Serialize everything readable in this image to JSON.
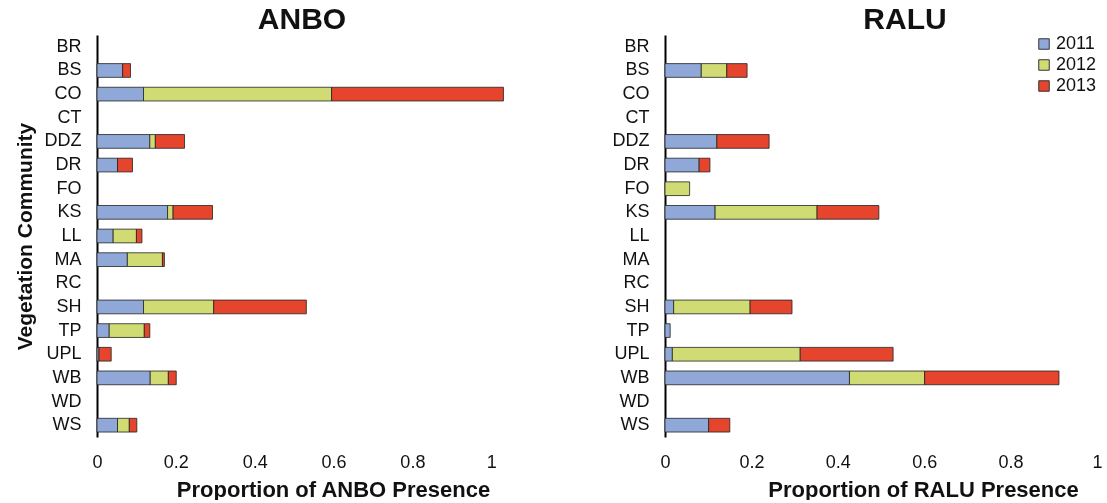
{
  "chart_data": [
    {
      "type": "bar",
      "orientation": "horizontal",
      "stacked": true,
      "title": "ANBO",
      "xlabel": "Proportion of ANBO Presence",
      "ylabel": "Vegetation Community",
      "categories": [
        "BR",
        "BS",
        "CO",
        "CT",
        "DDZ",
        "DR",
        "FO",
        "KS",
        "LL",
        "MA",
        "RC",
        "SH",
        "TP",
        "UPL",
        "WB",
        "WD",
        "WS"
      ],
      "series": [
        {
          "color": "#8fa8d8",
          "values": [
            null,
            0.065,
            0.118,
            null,
            0.134,
            0.052,
            null,
            0.179,
            0.041,
            0.077,
            null,
            0.118,
            0.031,
            0.005,
            0.135,
            null,
            0.052
          ]
        },
        {
          "color": "#d0dc73",
          "values": [
            null,
            null,
            0.477,
            null,
            0.014,
            null,
            null,
            0.014,
            0.059,
            0.089,
            null,
            0.178,
            0.089,
            null,
            0.046,
            null,
            0.03
          ]
        },
        {
          "color": "#e5452c",
          "values": [
            null,
            0.02,
            0.436,
            null,
            0.074,
            0.038,
            null,
            0.1,
            0.014,
            0.005,
            null,
            0.235,
            0.014,
            0.031,
            0.02,
            null,
            0.019
          ]
        }
      ],
      "xlim": [
        0,
        1.04
      ],
      "xticks": [
        0,
        0.2,
        0.4,
        0.6,
        0.8,
        1
      ]
    },
    {
      "type": "bar",
      "orientation": "horizontal",
      "stacked": true,
      "title": "RALU",
      "xlabel": "Proportion of RALU Presence",
      "categories": [
        "BR",
        "BS",
        "CO",
        "CT",
        "DDZ",
        "DR",
        "FO",
        "KS",
        "LL",
        "MA",
        "RC",
        "SH",
        "TP",
        "UPL",
        "WB",
        "WD",
        "WS"
      ],
      "series": [
        {
          "name": "2011",
          "color": "#8fa8d8",
          "values": [
            null,
            0.084,
            null,
            null,
            0.12,
            0.079,
            null,
            0.116,
            null,
            null,
            null,
            0.02,
            0.012,
            0.017,
            0.427,
            null,
            0.101
          ]
        },
        {
          "name": "2012",
          "color": "#d0dc73",
          "values": [
            null,
            0.059,
            null,
            null,
            null,
            null,
            0.057,
            0.236,
            null,
            null,
            null,
            0.177,
            null,
            0.296,
            0.174,
            null,
            null
          ]
        },
        {
          "name": "2013",
          "color": "#e5452c",
          "values": [
            null,
            0.047,
            null,
            null,
            0.121,
            0.025,
            null,
            0.143,
            null,
            null,
            null,
            0.097,
            null,
            0.215,
            0.311,
            null,
            0.049
          ]
        }
      ],
      "xlim": [
        0,
        1
      ],
      "xticks": [
        0,
        0.2,
        0.4,
        0.6,
        0.8,
        1
      ],
      "legend": "top right"
    }
  ]
}
